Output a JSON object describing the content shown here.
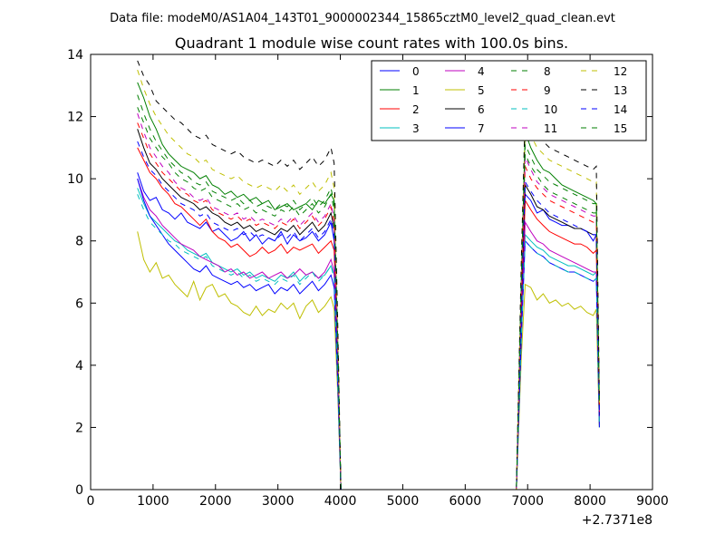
{
  "chart_data": {
    "type": "line",
    "suptitle": "Data file: modeM0/AS1A04_143T01_9000002344_15865cztM0_level2_quad_clean.evt",
    "title": "Quadrant 1 module wise count rates with 100.0s bins.",
    "xlabel": "",
    "ylabel": "",
    "x_offset_label": "+2.7371e8",
    "xlim": [
      0,
      9000
    ],
    "ylim": [
      0,
      14
    ],
    "xticks": [
      "0",
      "1000",
      "2000",
      "3000",
      "4000",
      "5000",
      "6000",
      "7000",
      "8000",
      "9000"
    ],
    "yticks": [
      "0",
      "2",
      "4",
      "6",
      "8",
      "10",
      "12",
      "14"
    ],
    "grid": false,
    "legend_position": "top-right",
    "legend_columns": 4,
    "x": [
      750,
      850,
      950,
      1050,
      1150,
      1250,
      1350,
      1450,
      1550,
      1650,
      1750,
      1850,
      1950,
      2050,
      2150,
      2250,
      2350,
      2450,
      2550,
      2650,
      2750,
      2850,
      2950,
      3050,
      3150,
      3250,
      3350,
      3450,
      3550,
      3650,
      3750,
      3850,
      3900,
      3960,
      4010,
      4060,
      6820,
      6900,
      6960,
      7050,
      7150,
      7250,
      7350,
      7450,
      7550,
      7650,
      7750,
      7850,
      7950,
      8050,
      8100,
      8150
    ],
    "series": [
      {
        "name": "0",
        "color": "#0000ff",
        "dash": "solid",
        "values": [
          10.2,
          9.6,
          9.3,
          9.4,
          9.0,
          8.9,
          8.7,
          8.9,
          8.6,
          8.5,
          8.4,
          8.6,
          8.3,
          8.4,
          8.2,
          8.0,
          8.1,
          8.3,
          8.0,
          8.2,
          7.9,
          8.1,
          8.0,
          8.3,
          7.9,
          8.2,
          8.0,
          8.1,
          8.3,
          8.0,
          8.2,
          8.6,
          8.0,
          4.0,
          0.0,
          0.0,
          0.0,
          5.8,
          9.5,
          9.3,
          8.9,
          9.0,
          8.7,
          8.6,
          8.5,
          8.5,
          8.4,
          8.4,
          8.3,
          8.0,
          8.2,
          2.3
        ]
      },
      {
        "name": "1",
        "color": "#007f00",
        "dash": "solid",
        "values": [
          13.1,
          12.6,
          12.0,
          11.6,
          11.1,
          10.8,
          10.6,
          10.4,
          10.3,
          10.2,
          10.0,
          10.1,
          9.8,
          9.7,
          9.5,
          9.6,
          9.4,
          9.5,
          9.3,
          9.4,
          9.2,
          9.3,
          9.0,
          9.1,
          9.2,
          9.0,
          9.1,
          9.2,
          9.0,
          9.3,
          9.2,
          9.5,
          9.3,
          4.6,
          0.0,
          0.0,
          0.0,
          6.8,
          11.5,
          11.0,
          10.6,
          10.3,
          10.2,
          10.0,
          9.8,
          9.7,
          9.6,
          9.5,
          9.4,
          9.3,
          9.2,
          2.6
        ]
      },
      {
        "name": "2",
        "color": "#ff0000",
        "dash": "solid",
        "values": [
          11.0,
          10.6,
          10.2,
          10.0,
          9.7,
          9.5,
          9.2,
          9.1,
          8.9,
          8.7,
          8.5,
          8.7,
          8.3,
          8.1,
          8.0,
          7.8,
          7.9,
          7.7,
          7.5,
          7.6,
          7.8,
          7.6,
          7.7,
          7.9,
          7.6,
          7.8,
          7.7,
          7.8,
          7.9,
          7.6,
          7.8,
          8.0,
          7.7,
          3.9,
          0.0,
          0.0,
          0.0,
          5.6,
          9.3,
          9.0,
          8.7,
          8.5,
          8.3,
          8.2,
          8.1,
          8.0,
          7.9,
          7.9,
          7.8,
          7.6,
          7.7,
          2.2
        ]
      },
      {
        "name": "3",
        "color": "#00bfbf",
        "dash": "solid",
        "values": [
          9.7,
          9.2,
          8.8,
          8.6,
          8.4,
          8.2,
          8.0,
          7.9,
          7.7,
          7.6,
          7.5,
          7.6,
          7.3,
          7.2,
          7.1,
          7.0,
          7.1,
          6.9,
          7.0,
          6.8,
          6.9,
          6.8,
          6.7,
          6.9,
          6.8,
          7.0,
          6.7,
          6.9,
          7.0,
          6.8,
          6.9,
          7.2,
          6.9,
          3.5,
          0.0,
          0.0,
          0.0,
          5.0,
          8.2,
          8.0,
          7.8,
          7.7,
          7.5,
          7.4,
          7.3,
          7.2,
          7.2,
          7.1,
          7.0,
          6.9,
          7.0,
          2.0
        ]
      },
      {
        "name": "4",
        "color": "#bf00bf",
        "dash": "solid",
        "values": [
          10.0,
          9.4,
          9.0,
          8.8,
          8.5,
          8.3,
          8.1,
          7.9,
          7.8,
          7.7,
          7.5,
          7.4,
          7.3,
          7.2,
          7.0,
          7.1,
          6.9,
          7.0,
          6.8,
          6.9,
          7.0,
          6.8,
          6.9,
          7.0,
          6.8,
          6.9,
          7.1,
          6.9,
          7.0,
          6.8,
          7.0,
          7.4,
          7.0,
          3.5,
          0.0,
          0.0,
          0.0,
          5.2,
          8.6,
          8.3,
          8.0,
          7.9,
          7.7,
          7.6,
          7.5,
          7.4,
          7.3,
          7.2,
          7.1,
          7.0,
          7.0,
          2.1
        ]
      },
      {
        "name": "5",
        "color": "#bfbf00",
        "dash": "solid",
        "values": [
          8.3,
          7.4,
          7.0,
          7.3,
          6.8,
          6.9,
          6.6,
          6.4,
          6.2,
          6.7,
          6.1,
          6.5,
          6.6,
          6.2,
          6.3,
          6.0,
          5.9,
          5.7,
          5.6,
          5.9,
          5.6,
          5.8,
          5.7,
          6.0,
          5.8,
          6.0,
          5.5,
          5.9,
          6.1,
          5.7,
          5.9,
          6.2,
          5.8,
          3.0,
          0.0,
          0.0,
          0.0,
          4.3,
          6.6,
          6.5,
          6.1,
          6.3,
          6.0,
          6.1,
          5.9,
          6.0,
          5.8,
          5.9,
          5.7,
          5.6,
          5.8,
          2.0
        ]
      },
      {
        "name": "6",
        "color": "#000000",
        "dash": "solid",
        "values": [
          11.6,
          11.0,
          10.5,
          10.3,
          10.0,
          9.8,
          9.6,
          9.4,
          9.3,
          9.2,
          9.0,
          9.1,
          8.9,
          8.8,
          8.6,
          8.5,
          8.6,
          8.4,
          8.5,
          8.3,
          8.4,
          8.3,
          8.2,
          8.4,
          8.3,
          8.5,
          8.2,
          8.4,
          8.6,
          8.3,
          8.5,
          8.9,
          8.4,
          4.2,
          0.0,
          0.0,
          0.0,
          6.0,
          9.8,
          9.5,
          9.1,
          9.0,
          8.8,
          8.7,
          8.6,
          8.5,
          8.4,
          8.4,
          8.3,
          8.2,
          8.2,
          2.4
        ]
      },
      {
        "name": "7",
        "color": "#0000ff",
        "dash": "solid",
        "values": [
          10.0,
          9.3,
          8.8,
          8.5,
          8.2,
          7.9,
          7.7,
          7.5,
          7.3,
          7.1,
          7.0,
          7.2,
          6.9,
          6.8,
          6.7,
          6.6,
          6.7,
          6.5,
          6.6,
          6.4,
          6.5,
          6.6,
          6.3,
          6.5,
          6.4,
          6.6,
          6.3,
          6.5,
          6.7,
          6.4,
          6.6,
          6.9,
          6.5,
          3.3,
          0.0,
          0.0,
          0.0,
          4.9,
          8.0,
          7.8,
          7.6,
          7.5,
          7.3,
          7.2,
          7.1,
          7.0,
          7.0,
          6.9,
          6.8,
          6.7,
          6.8,
          2.0
        ]
      },
      {
        "name": "8",
        "color": "#007f00",
        "dash": "dashed",
        "values": [
          12.3,
          11.8,
          11.3,
          11.0,
          10.7,
          10.5,
          10.2,
          10.0,
          9.9,
          9.7,
          9.6,
          9.7,
          9.4,
          9.3,
          9.2,
          9.1,
          9.2,
          9.0,
          9.1,
          8.9,
          9.0,
          8.9,
          8.8,
          9.0,
          8.9,
          9.1,
          8.8,
          9.0,
          9.2,
          8.9,
          9.1,
          9.5,
          9.0,
          4.5,
          0.0,
          0.0,
          0.0,
          6.5,
          10.8,
          10.4,
          10.1,
          9.8,
          9.6,
          9.5,
          9.4,
          9.3,
          9.2,
          9.1,
          9.0,
          8.9,
          8.9,
          2.6
        ]
      },
      {
        "name": "9",
        "color": "#ff0000",
        "dash": "dashed",
        "values": [
          11.8,
          11.3,
          10.8,
          10.5,
          10.2,
          10.0,
          9.8,
          9.6,
          9.5,
          9.3,
          9.2,
          9.3,
          9.0,
          8.9,
          8.8,
          8.7,
          8.8,
          8.6,
          8.7,
          8.5,
          8.6,
          8.5,
          8.4,
          8.6,
          8.5,
          8.7,
          8.4,
          8.6,
          8.8,
          8.5,
          8.7,
          9.1,
          8.6,
          4.3,
          0.0,
          0.0,
          0.0,
          6.3,
          10.4,
          10.0,
          9.7,
          9.5,
          9.3,
          9.2,
          9.1,
          9.0,
          8.9,
          8.8,
          8.7,
          8.6,
          8.6,
          2.5
        ]
      },
      {
        "name": "10",
        "color": "#00bfbf",
        "dash": "dashed",
        "values": [
          9.5,
          9.0,
          8.6,
          8.4,
          8.2,
          8.0,
          7.9,
          7.7,
          7.6,
          7.5,
          7.4,
          7.5,
          7.2,
          7.1,
          7.0,
          6.9,
          7.0,
          6.8,
          6.9,
          6.7,
          6.8,
          6.7,
          6.6,
          6.8,
          6.7,
          6.9,
          6.6,
          6.8,
          7.0,
          6.7,
          6.9,
          7.2,
          6.8,
          3.4,
          0.0,
          0.0,
          0.0,
          5.0,
          8.0,
          7.8,
          7.6,
          7.5,
          7.3,
          7.2,
          7.1,
          7.0,
          7.0,
          6.9,
          6.8,
          6.7,
          6.8,
          2.0
        ]
      },
      {
        "name": "11",
        "color": "#bf00bf",
        "dash": "dashed",
        "values": [
          12.1,
          11.5,
          11.0,
          10.7,
          10.4,
          10.2,
          9.9,
          9.7,
          9.6,
          9.4,
          9.3,
          9.4,
          9.1,
          9.0,
          8.9,
          8.8,
          8.9,
          8.7,
          8.8,
          8.6,
          8.7,
          8.6,
          8.5,
          8.7,
          8.6,
          8.8,
          8.5,
          8.7,
          8.9,
          8.6,
          8.8,
          9.2,
          8.7,
          4.4,
          0.0,
          0.0,
          0.0,
          6.4,
          10.7,
          10.3,
          9.9,
          9.7,
          9.5,
          9.4,
          9.3,
          9.2,
          9.1,
          9.0,
          8.9,
          8.8,
          8.8,
          2.5
        ]
      },
      {
        "name": "12",
        "color": "#bfbf00",
        "dash": "dashed",
        "values": [
          13.5,
          12.9,
          12.4,
          12.0,
          11.7,
          11.4,
          11.2,
          11.0,
          10.8,
          10.7,
          10.5,
          10.6,
          10.3,
          10.2,
          10.1,
          10.0,
          10.1,
          9.9,
          9.8,
          9.7,
          9.8,
          9.7,
          9.6,
          9.8,
          9.6,
          9.8,
          9.5,
          9.7,
          9.9,
          9.6,
          9.8,
          10.2,
          9.7,
          4.8,
          0.0,
          0.0,
          0.0,
          7.1,
          11.8,
          11.4,
          11.0,
          10.8,
          10.6,
          10.5,
          10.4,
          10.3,
          10.2,
          10.1,
          10.0,
          9.9,
          9.9,
          2.8
        ]
      },
      {
        "name": "13",
        "color": "#000000",
        "dash": "dashed",
        "values": [
          13.8,
          13.3,
          13.0,
          12.5,
          12.3,
          12.1,
          11.9,
          11.8,
          11.6,
          11.4,
          11.3,
          11.4,
          11.1,
          11.0,
          10.9,
          10.8,
          10.9,
          10.7,
          10.6,
          10.5,
          10.6,
          10.5,
          10.4,
          10.6,
          10.4,
          10.6,
          10.3,
          10.5,
          10.7,
          10.4,
          10.6,
          11.0,
          10.5,
          5.2,
          0.0,
          0.0,
          0.0,
          7.4,
          12.2,
          11.8,
          11.4,
          11.2,
          11.0,
          10.9,
          10.8,
          10.7,
          10.6,
          10.5,
          10.4,
          10.3,
          10.4,
          2.9
        ]
      },
      {
        "name": "14",
        "color": "#0000ff",
        "dash": "dashed",
        "values": [
          11.2,
          10.7,
          10.3,
          10.1,
          9.8,
          9.6,
          9.4,
          9.2,
          9.1,
          9.0,
          8.8,
          8.9,
          8.6,
          8.5,
          8.4,
          8.3,
          8.4,
          8.2,
          8.3,
          8.1,
          8.2,
          8.1,
          8.0,
          8.2,
          8.1,
          8.3,
          8.0,
          8.2,
          8.4,
          8.1,
          8.3,
          8.7,
          8.2,
          4.1,
          0.0,
          0.0,
          0.0,
          6.0,
          9.9,
          9.6,
          9.3,
          9.1,
          8.9,
          8.8,
          8.7,
          8.6,
          8.5,
          8.4,
          8.3,
          8.2,
          8.2,
          2.4
        ]
      },
      {
        "name": "15",
        "color": "#007f00",
        "dash": "dashed",
        "values": [
          12.7,
          12.1,
          11.6,
          11.2,
          10.9,
          10.6,
          10.4,
          10.2,
          10.1,
          9.9,
          9.8,
          9.9,
          9.6,
          9.5,
          9.4,
          9.3,
          9.4,
          9.2,
          9.3,
          9.1,
          9.2,
          9.1,
          9.0,
          9.2,
          9.1,
          9.3,
          9.0,
          9.2,
          9.4,
          9.1,
          9.3,
          9.7,
          9.2,
          4.6,
          0.0,
          0.0,
          0.0,
          6.7,
          11.1,
          10.7,
          10.3,
          10.1,
          9.9,
          9.8,
          9.7,
          9.6,
          9.5,
          9.4,
          9.3,
          9.2,
          9.2,
          2.7
        ]
      }
    ]
  }
}
